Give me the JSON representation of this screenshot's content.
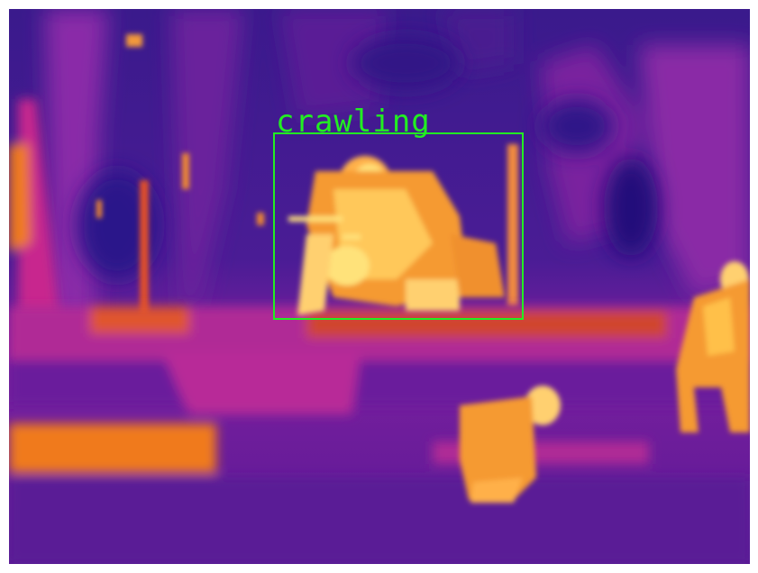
{
  "image": {
    "kind": "thermal-camera-frame",
    "palette": "ironbow",
    "colors": {
      "cold": "#3a1a8c",
      "mid": "#c0249a",
      "warm": "#f07a1e",
      "hot": "#ffe27a",
      "detection": "#22ee22"
    }
  },
  "detections": [
    {
      "label": "crawling"
    }
  ]
}
